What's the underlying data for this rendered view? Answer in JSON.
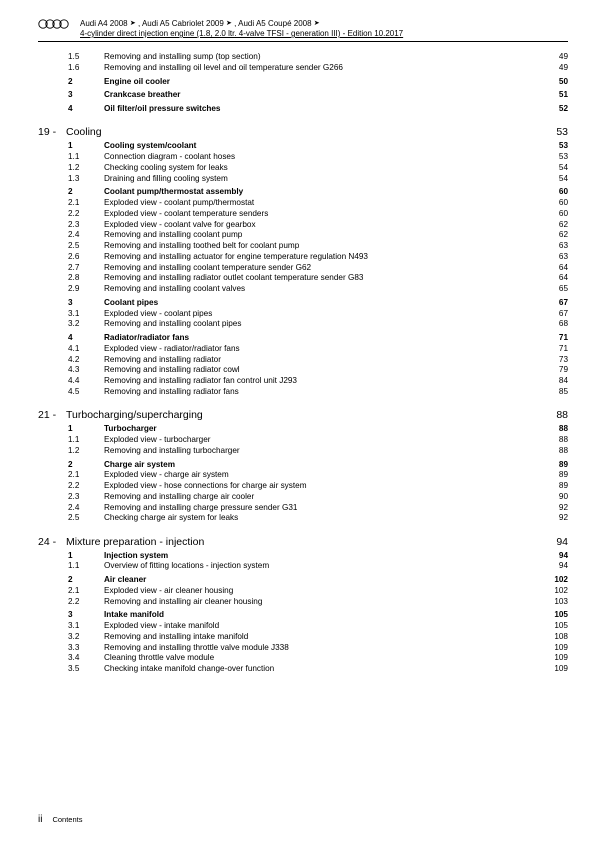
{
  "header": {
    "line1_a": "Audi A4 2008",
    "line1_b": ", Audi A5 Cabriolet 2009",
    "line1_c": ", Audi A5 Coupé 2008",
    "line2": "4-cylinder direct injection engine (1.8, 2.0 ltr. 4-valve TFSI - generation III) - Edition 10.2017"
  },
  "pre_rows": [
    {
      "n": "1.5",
      "t": "Removing and installing sump (top section)",
      "p": "49",
      "b": false
    },
    {
      "n": "1.6",
      "t": "Removing and installing oil level and oil temperature sender G266",
      "p": "49",
      "b": false
    },
    {
      "n": "2",
      "t": "Engine oil cooler",
      "p": "50",
      "b": true
    },
    {
      "n": "3",
      "t": "Crankcase breather",
      "p": "51",
      "b": true
    },
    {
      "n": "4",
      "t": "Oil filter/oil pressure switches",
      "p": "52",
      "b": true
    }
  ],
  "chapters": [
    {
      "num": "19 -",
      "title": "Cooling",
      "page": "53",
      "rows": [
        {
          "n": "1",
          "t": "Cooling system/coolant",
          "p": "53",
          "b": true
        },
        {
          "n": "1.1",
          "t": "Connection diagram - coolant hoses",
          "p": "53",
          "b": false
        },
        {
          "n": "1.2",
          "t": "Checking cooling system for leaks",
          "p": "54",
          "b": false
        },
        {
          "n": "1.3",
          "t": "Draining and filling cooling system",
          "p": "54",
          "b": false
        },
        {
          "n": "2",
          "t": "Coolant pump/thermostat assembly",
          "p": "60",
          "b": true
        },
        {
          "n": "2.1",
          "t": "Exploded view - coolant pump/thermostat",
          "p": "60",
          "b": false
        },
        {
          "n": "2.2",
          "t": "Exploded view - coolant temperature senders",
          "p": "60",
          "b": false
        },
        {
          "n": "2.3",
          "t": "Exploded view - coolant valve for gearbox",
          "p": "62",
          "b": false
        },
        {
          "n": "2.4",
          "t": "Removing and installing coolant pump",
          "p": "62",
          "b": false
        },
        {
          "n": "2.5",
          "t": "Removing and installing toothed belt for coolant pump",
          "p": "63",
          "b": false
        },
        {
          "n": "2.6",
          "t": "Removing and installing actuator for engine temperature regulation N493",
          "p": "63",
          "b": false
        },
        {
          "n": "2.7",
          "t": "Removing and installing coolant temperature sender G62",
          "p": "64",
          "b": false
        },
        {
          "n": "2.8",
          "t": "Removing and installing radiator outlet coolant temperature sender G83",
          "p": "64",
          "b": false
        },
        {
          "n": "2.9",
          "t": "Removing and installing coolant valves",
          "p": "65",
          "b": false
        },
        {
          "n": "3",
          "t": "Coolant pipes",
          "p": "67",
          "b": true
        },
        {
          "n": "3.1",
          "t": "Exploded view - coolant pipes",
          "p": "67",
          "b": false
        },
        {
          "n": "3.2",
          "t": "Removing and installing coolant pipes",
          "p": "68",
          "b": false
        },
        {
          "n": "4",
          "t": "Radiator/radiator fans",
          "p": "71",
          "b": true
        },
        {
          "n": "4.1",
          "t": "Exploded view - radiator/radiator fans",
          "p": "71",
          "b": false
        },
        {
          "n": "4.2",
          "t": "Removing and installing radiator",
          "p": "73",
          "b": false
        },
        {
          "n": "4.3",
          "t": "Removing and installing radiator cowl",
          "p": "79",
          "b": false
        },
        {
          "n": "4.4",
          "t": "Removing and installing radiator fan control unit J293",
          "p": "84",
          "b": false
        },
        {
          "n": "4.5",
          "t": "Removing and installing radiator fans",
          "p": "85",
          "b": false
        }
      ]
    },
    {
      "num": "21 -",
      "title": "Turbocharging/supercharging",
      "page": "88",
      "rows": [
        {
          "n": "1",
          "t": "Turbocharger",
          "p": "88",
          "b": true
        },
        {
          "n": "1.1",
          "t": "Exploded view - turbocharger",
          "p": "88",
          "b": false
        },
        {
          "n": "1.2",
          "t": "Removing and installing turbocharger",
          "p": "88",
          "b": false
        },
        {
          "n": "2",
          "t": "Charge air system",
          "p": "89",
          "b": true
        },
        {
          "n": "2.1",
          "t": "Exploded view - charge air system",
          "p": "89",
          "b": false
        },
        {
          "n": "2.2",
          "t": "Exploded view - hose connections for charge air system",
          "p": "89",
          "b": false
        },
        {
          "n": "2.3",
          "t": "Removing and installing charge air cooler",
          "p": "90",
          "b": false
        },
        {
          "n": "2.4",
          "t": "Removing and installing charge pressure sender G31",
          "p": "92",
          "b": false
        },
        {
          "n": "2.5",
          "t": "Checking charge air system for leaks",
          "p": "92",
          "b": false
        }
      ]
    },
    {
      "num": "24 -",
      "title": "Mixture preparation - injection",
      "page": "94",
      "rows": [
        {
          "n": "1",
          "t": "Injection system",
          "p": "94",
          "b": true
        },
        {
          "n": "1.1",
          "t": "Overview of fitting locations - injection system",
          "p": "94",
          "b": false
        },
        {
          "n": "2",
          "t": "Air cleaner",
          "p": "102",
          "b": true
        },
        {
          "n": "2.1",
          "t": "Exploded view - air cleaner housing",
          "p": "102",
          "b": false
        },
        {
          "n": "2.2",
          "t": "Removing and installing air cleaner housing",
          "p": "103",
          "b": false
        },
        {
          "n": "3",
          "t": "Intake manifold",
          "p": "105",
          "b": true
        },
        {
          "n": "3.1",
          "t": "Exploded view - intake manifold",
          "p": "105",
          "b": false
        },
        {
          "n": "3.2",
          "t": "Removing and installing intake manifold",
          "p": "108",
          "b": false
        },
        {
          "n": "3.3",
          "t": "Removing and installing throttle valve module J338",
          "p": "109",
          "b": false
        },
        {
          "n": "3.4",
          "t": "Cleaning throttle valve module",
          "p": "109",
          "b": false
        },
        {
          "n": "3.5",
          "t": "Checking intake manifold change-over function",
          "p": "109",
          "b": false
        }
      ]
    }
  ],
  "footer": {
    "page_num": "ii",
    "label": "Contents"
  }
}
